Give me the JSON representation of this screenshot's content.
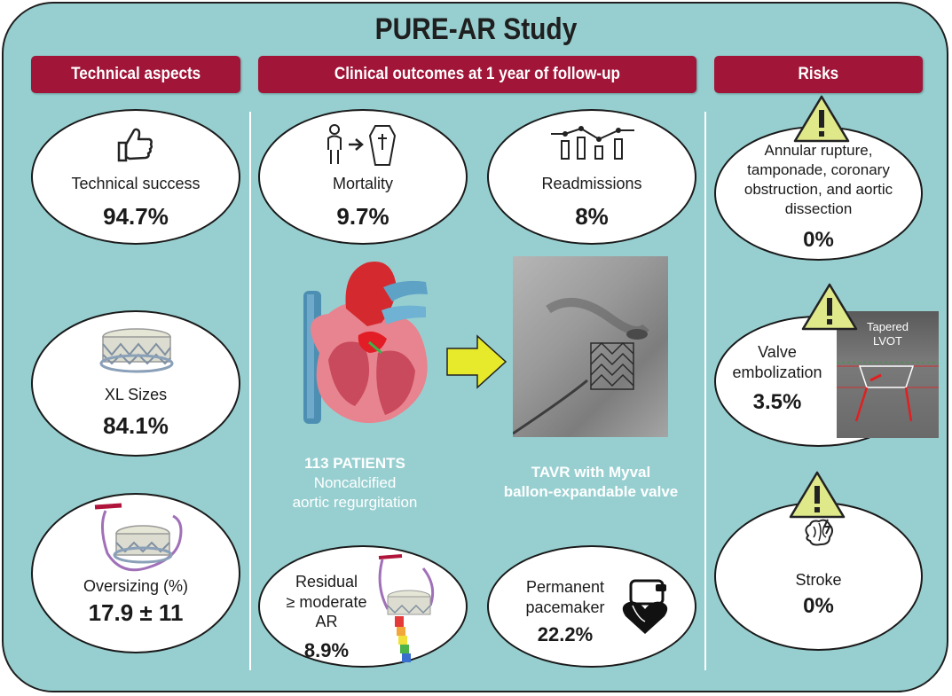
{
  "title": "PURE-AR Study",
  "headers": {
    "technical": "Technical aspects",
    "clinical": "Clinical outcomes at 1 year of follow-up",
    "risks": "Risks"
  },
  "technical": {
    "success": {
      "label": "Technical success",
      "value": "94.7%"
    },
    "xl": {
      "label": "XL Sizes",
      "value": "84.1%"
    },
    "oversizing": {
      "label": "Oversizing (%)",
      "value": "17.9 ± 11"
    }
  },
  "clinical": {
    "mortality": {
      "label": "Mortality",
      "value": "9.7%"
    },
    "readmissions": {
      "label": "Readmissions",
      "value": "8%"
    },
    "patients": {
      "line1": "113 PATIENTS",
      "line2": "Noncalcified",
      "line3": "aortic regurgitation"
    },
    "tavr": {
      "line1": "TAVR with Myval",
      "line2": "ballon-expandable valve"
    },
    "residual": {
      "line1": "Residual",
      "line2": "≥ moderate",
      "line3": "AR",
      "value": "8.9%"
    },
    "pacemaker": {
      "line1": "Permanent",
      "line2": "pacemaker",
      "value": "22.2%"
    }
  },
  "risks": {
    "rupture": {
      "line1": "Annular rupture,",
      "line2": "tamponade, coronary",
      "line3": "obstruction, and aortic",
      "line4": "dissection",
      "value": "0%"
    },
    "embolization": {
      "line1": "Valve",
      "line2": "embolization",
      "value": "3.5%",
      "image_line1": "Tapered",
      "image_line2": "LVOT"
    },
    "stroke": {
      "label": "Stroke",
      "value": "0%"
    }
  },
  "colors": {
    "background": "#97cfd0",
    "header": "#a01538",
    "warning": "#dfe98a",
    "arrow": "#e7ea2b"
  },
  "icons": [
    "thumbs-up-icon",
    "valve-icon",
    "oversized-valve-icon",
    "patient-to-coffin-icon",
    "readmission-chart-icon",
    "heart-illustration",
    "fluoroscopy-image",
    "residual-ar-valve-icon",
    "pacemaker-icon",
    "warning-icon",
    "brain-lightning-icon",
    "lvot-ct-image"
  ]
}
